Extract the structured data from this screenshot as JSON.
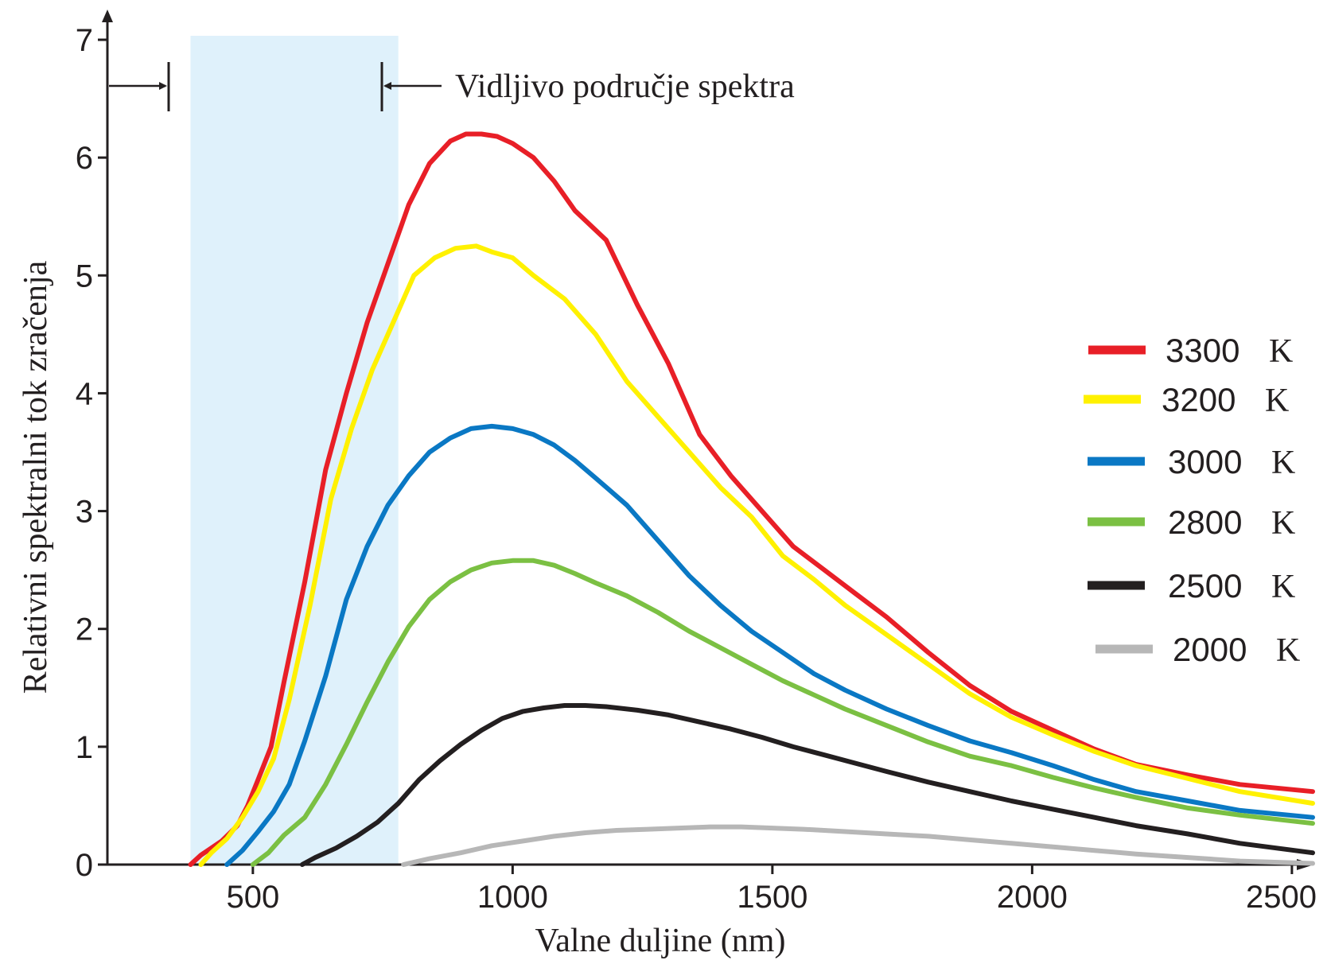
{
  "chart_data": {
    "type": "line",
    "title": "",
    "xlabel": "Valne duljine (nm)",
    "ylabel": "Relativni spektralni tok zračenja",
    "xlim": [
      220,
      2540
    ],
    "ylim": [
      0,
      7
    ],
    "x_ticks": [
      500,
      1000,
      1500,
      2000,
      2500
    ],
    "y_ticks": [
      0,
      1,
      2,
      3,
      4,
      5,
      6,
      7
    ],
    "x_tick_labels": [
      "500",
      "1000",
      "1500",
      "2000",
      "2500"
    ],
    "y_tick_labels": [
      "0",
      "1",
      "2",
      "3",
      "4",
      "5",
      "6",
      "7"
    ],
    "grid": false,
    "legend_position": "right",
    "visible_band": {
      "range": [
        380,
        780
      ],
      "label": "Vidljivo područje spektra",
      "color": "#dff1fb"
    },
    "series": [
      {
        "name": "3300",
        "unit": "K",
        "color": "#e81f27",
        "points": [
          [
            380,
            0
          ],
          [
            400,
            0.08
          ],
          [
            440,
            0.2
          ],
          [
            470,
            0.33
          ],
          [
            490,
            0.5
          ],
          [
            510,
            0.72
          ],
          [
            535,
            1.0
          ],
          [
            560,
            1.55
          ],
          [
            600,
            2.4
          ],
          [
            640,
            3.35
          ],
          [
            680,
            4.0
          ],
          [
            720,
            4.6
          ],
          [
            760,
            5.1
          ],
          [
            800,
            5.6
          ],
          [
            840,
            5.95
          ],
          [
            880,
            6.14
          ],
          [
            910,
            6.2
          ],
          [
            940,
            6.2
          ],
          [
            970,
            6.18
          ],
          [
            1000,
            6.12
          ],
          [
            1040,
            6.0
          ],
          [
            1080,
            5.8
          ],
          [
            1120,
            5.55
          ],
          [
            1180,
            5.3
          ],
          [
            1240,
            4.75
          ],
          [
            1300,
            4.25
          ],
          [
            1360,
            3.65
          ],
          [
            1420,
            3.3
          ],
          [
            1480,
            3.0
          ],
          [
            1540,
            2.7
          ],
          [
            1600,
            2.5
          ],
          [
            1660,
            2.3
          ],
          [
            1720,
            2.1
          ],
          [
            1800,
            1.8
          ],
          [
            1880,
            1.52
          ],
          [
            1960,
            1.3
          ],
          [
            2040,
            1.14
          ],
          [
            2120,
            0.98
          ],
          [
            2200,
            0.85
          ],
          [
            2300,
            0.76
          ],
          [
            2400,
            0.68
          ],
          [
            2540,
            0.62
          ]
        ]
      },
      {
        "name": "3200",
        "unit": "K",
        "color": "#fff100",
        "points": [
          [
            400,
            0
          ],
          [
            420,
            0.1
          ],
          [
            450,
            0.22
          ],
          [
            480,
            0.4
          ],
          [
            510,
            0.62
          ],
          [
            540,
            0.9
          ],
          [
            570,
            1.4
          ],
          [
            610,
            2.2
          ],
          [
            650,
            3.1
          ],
          [
            690,
            3.7
          ],
          [
            730,
            4.2
          ],
          [
            770,
            4.6
          ],
          [
            810,
            5.0
          ],
          [
            850,
            5.15
          ],
          [
            890,
            5.23
          ],
          [
            930,
            5.25
          ],
          [
            960,
            5.2
          ],
          [
            1000,
            5.15
          ],
          [
            1040,
            5.0
          ],
          [
            1100,
            4.8
          ],
          [
            1160,
            4.5
          ],
          [
            1220,
            4.1
          ],
          [
            1280,
            3.8
          ],
          [
            1340,
            3.5
          ],
          [
            1400,
            3.2
          ],
          [
            1460,
            2.95
          ],
          [
            1520,
            2.62
          ],
          [
            1580,
            2.42
          ],
          [
            1640,
            2.2
          ],
          [
            1720,
            1.95
          ],
          [
            1800,
            1.7
          ],
          [
            1880,
            1.45
          ],
          [
            1960,
            1.25
          ],
          [
            2040,
            1.1
          ],
          [
            2120,
            0.96
          ],
          [
            2200,
            0.84
          ],
          [
            2300,
            0.73
          ],
          [
            2400,
            0.62
          ],
          [
            2540,
            0.52
          ]
        ]
      },
      {
        "name": "3000",
        "unit": "K",
        "color": "#0a78c4",
        "points": [
          [
            450,
            0
          ],
          [
            480,
            0.12
          ],
          [
            510,
            0.28
          ],
          [
            540,
            0.45
          ],
          [
            570,
            0.68
          ],
          [
            600,
            1.05
          ],
          [
            640,
            1.6
          ],
          [
            680,
            2.25
          ],
          [
            720,
            2.7
          ],
          [
            760,
            3.05
          ],
          [
            800,
            3.3
          ],
          [
            840,
            3.5
          ],
          [
            880,
            3.62
          ],
          [
            920,
            3.7
          ],
          [
            960,
            3.72
          ],
          [
            1000,
            3.7
          ],
          [
            1040,
            3.65
          ],
          [
            1080,
            3.56
          ],
          [
            1120,
            3.43
          ],
          [
            1160,
            3.28
          ],
          [
            1220,
            3.05
          ],
          [
            1280,
            2.75
          ],
          [
            1340,
            2.45
          ],
          [
            1400,
            2.2
          ],
          [
            1460,
            1.98
          ],
          [
            1520,
            1.8
          ],
          [
            1580,
            1.62
          ],
          [
            1640,
            1.48
          ],
          [
            1720,
            1.32
          ],
          [
            1800,
            1.18
          ],
          [
            1880,
            1.05
          ],
          [
            1960,
            0.95
          ],
          [
            2040,
            0.84
          ],
          [
            2120,
            0.72
          ],
          [
            2200,
            0.62
          ],
          [
            2300,
            0.54
          ],
          [
            2400,
            0.46
          ],
          [
            2540,
            0.4
          ]
        ]
      },
      {
        "name": "2800",
        "unit": "K",
        "color": "#7bc043",
        "points": [
          [
            500,
            0
          ],
          [
            530,
            0.1
          ],
          [
            560,
            0.25
          ],
          [
            600,
            0.4
          ],
          [
            640,
            0.68
          ],
          [
            680,
            1.02
          ],
          [
            720,
            1.38
          ],
          [
            760,
            1.72
          ],
          [
            800,
            2.02
          ],
          [
            840,
            2.25
          ],
          [
            880,
            2.4
          ],
          [
            920,
            2.5
          ],
          [
            960,
            2.56
          ],
          [
            1000,
            2.58
          ],
          [
            1040,
            2.58
          ],
          [
            1080,
            2.54
          ],
          [
            1120,
            2.47
          ],
          [
            1160,
            2.39
          ],
          [
            1220,
            2.28
          ],
          [
            1280,
            2.14
          ],
          [
            1340,
            1.98
          ],
          [
            1400,
            1.84
          ],
          [
            1460,
            1.7
          ],
          [
            1520,
            1.56
          ],
          [
            1580,
            1.44
          ],
          [
            1640,
            1.32
          ],
          [
            1720,
            1.18
          ],
          [
            1800,
            1.04
          ],
          [
            1880,
            0.92
          ],
          [
            1960,
            0.84
          ],
          [
            2040,
            0.74
          ],
          [
            2120,
            0.65
          ],
          [
            2200,
            0.57
          ],
          [
            2300,
            0.48
          ],
          [
            2400,
            0.42
          ],
          [
            2540,
            0.35
          ]
        ]
      },
      {
        "name": "2500",
        "unit": "K",
        "color": "#231f20",
        "points": [
          [
            595,
            0
          ],
          [
            620,
            0.06
          ],
          [
            660,
            0.14
          ],
          [
            700,
            0.24
          ],
          [
            740,
            0.36
          ],
          [
            780,
            0.52
          ],
          [
            820,
            0.72
          ],
          [
            860,
            0.88
          ],
          [
            900,
            1.02
          ],
          [
            940,
            1.14
          ],
          [
            980,
            1.24
          ],
          [
            1020,
            1.3
          ],
          [
            1060,
            1.33
          ],
          [
            1100,
            1.35
          ],
          [
            1140,
            1.35
          ],
          [
            1180,
            1.34
          ],
          [
            1240,
            1.31
          ],
          [
            1300,
            1.27
          ],
          [
            1360,
            1.21
          ],
          [
            1420,
            1.15
          ],
          [
            1480,
            1.08
          ],
          [
            1540,
            1.0
          ],
          [
            1600,
            0.93
          ],
          [
            1660,
            0.86
          ],
          [
            1720,
            0.79
          ],
          [
            1800,
            0.7
          ],
          [
            1880,
            0.62
          ],
          [
            1960,
            0.54
          ],
          [
            2040,
            0.47
          ],
          [
            2120,
            0.4
          ],
          [
            2200,
            0.33
          ],
          [
            2300,
            0.26
          ],
          [
            2400,
            0.18
          ],
          [
            2540,
            0.1
          ]
        ]
      },
      {
        "name": "2000",
        "unit": "K",
        "color": "#b7b7b7",
        "points": [
          [
            790,
            0
          ],
          [
            840,
            0.05
          ],
          [
            900,
            0.1
          ],
          [
            960,
            0.16
          ],
          [
            1020,
            0.2
          ],
          [
            1080,
            0.24
          ],
          [
            1140,
            0.27
          ],
          [
            1200,
            0.29
          ],
          [
            1260,
            0.3
          ],
          [
            1320,
            0.31
          ],
          [
            1380,
            0.32
          ],
          [
            1440,
            0.32
          ],
          [
            1500,
            0.31
          ],
          [
            1560,
            0.3
          ],
          [
            1640,
            0.28
          ],
          [
            1720,
            0.26
          ],
          [
            1800,
            0.24
          ],
          [
            1880,
            0.21
          ],
          [
            1960,
            0.18
          ],
          [
            2040,
            0.15
          ],
          [
            2120,
            0.12
          ],
          [
            2200,
            0.09
          ],
          [
            2300,
            0.06
          ],
          [
            2400,
            0.03
          ],
          [
            2540,
            0.01
          ]
        ]
      }
    ]
  }
}
